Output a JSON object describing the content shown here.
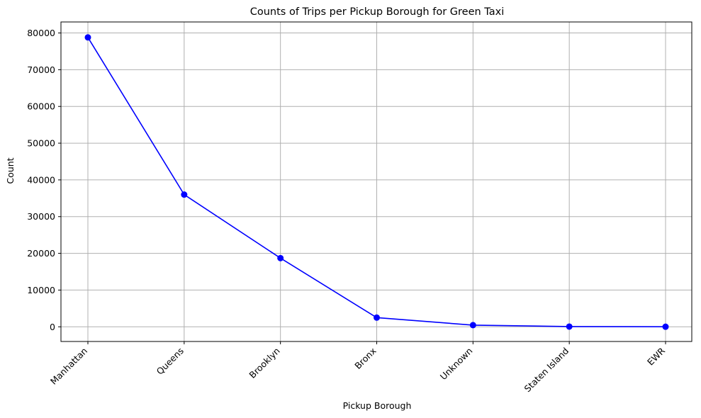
{
  "chart_data": {
    "type": "line",
    "title": "Counts of Trips per Pickup Borough for Green Taxi",
    "xlabel": "Pickup Borough",
    "ylabel": "Count",
    "categories": [
      "Manhattan",
      "Queens",
      "Brooklyn",
      "Bronx",
      "Unknown",
      "Staten Island",
      "EWR"
    ],
    "series": [
      {
        "values": [
          78800,
          36000,
          18700,
          2500,
          450,
          60,
          20
        ],
        "color": "#0000ff",
        "marker": "circle"
      }
    ],
    "yticks": [
      "0",
      "10000",
      "20000",
      "30000",
      "40000",
      "50000",
      "60000",
      "70000",
      "80000"
    ],
    "ylim": [
      -4000,
      83000
    ],
    "grid": true,
    "xtick_rotation": 45
  }
}
